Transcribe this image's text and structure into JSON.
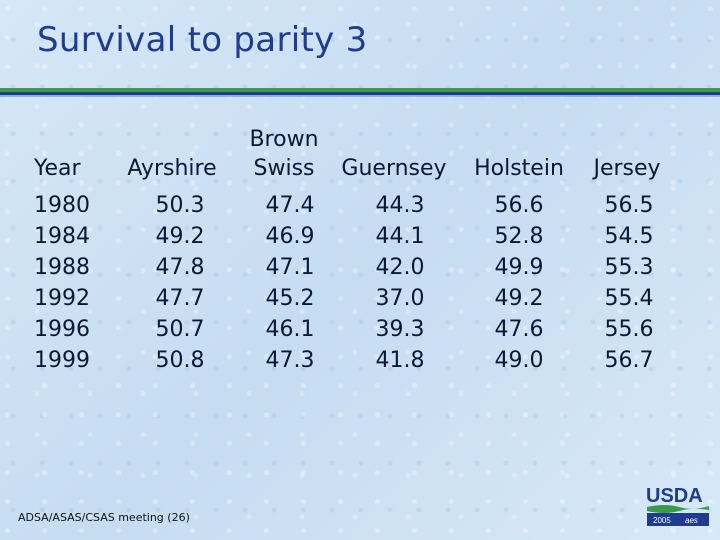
{
  "slide": {
    "title": "Survival to parity 3",
    "footer": "ADSA/ASAS/CSAS meeting (26)",
    "logo_text": "USDA",
    "logo_year": "2005",
    "logo_mark": "aes"
  },
  "table": {
    "year_header": "Year",
    "breeds": [
      {
        "line1": "",
        "line2": "Ayrshire"
      },
      {
        "line1": "Brown",
        "line2": "Swiss"
      },
      {
        "line1": "",
        "line2": "Guernsey"
      },
      {
        "line1": "",
        "line2": "Holstein"
      },
      {
        "line1": "",
        "line2": "Jersey"
      }
    ],
    "rows": [
      {
        "year": "1980",
        "values": [
          "50.3",
          "47.4",
          "44.3",
          "56.6",
          "56.5"
        ]
      },
      {
        "year": "1984",
        "values": [
          "49.2",
          "46.9",
          "44.1",
          "52.8",
          "54.5"
        ]
      },
      {
        "year": "1988",
        "values": [
          "47.8",
          "47.1",
          "42.0",
          "49.9",
          "55.3"
        ]
      },
      {
        "year": "1992",
        "values": [
          "47.7",
          "45.2",
          "37.0",
          "49.2",
          "55.4"
        ]
      },
      {
        "year": "1996",
        "values": [
          "50.7",
          "46.1",
          "39.3",
          "47.6",
          "55.6"
        ]
      },
      {
        "year": "1999",
        "values": [
          "50.8",
          "47.3",
          "41.8",
          "49.0",
          "56.7"
        ]
      }
    ]
  },
  "colors": {
    "title": "#1f3c8f",
    "rule_green": "#3d9a4a",
    "rule_blue": "#1f3c8f"
  }
}
